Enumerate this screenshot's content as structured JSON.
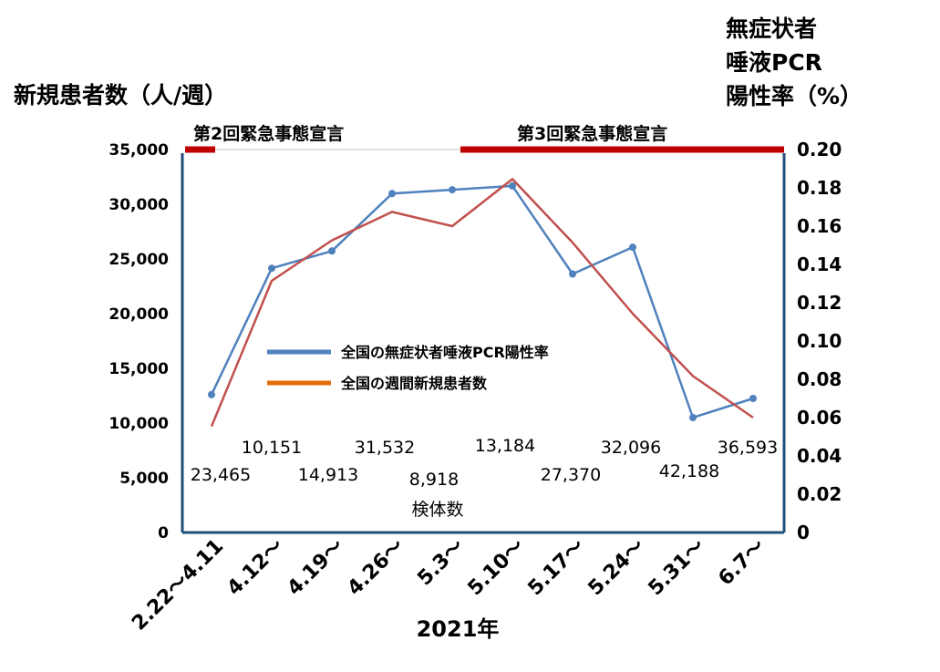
{
  "chart_data": {
    "type": "line",
    "x_axis_label": "2021年",
    "categories": [
      "2.22～4.11",
      "4.12～",
      "4.19～",
      "4.26～",
      "5.3～",
      "5.10～",
      "5.17～",
      "5.24～",
      "5.31～",
      "6.7～"
    ],
    "left_axis": {
      "label": "新規患者数（人/週）",
      "ylim": [
        0,
        35000
      ],
      "ticks": [
        "0",
        "5,000",
        "10,000",
        "15,000",
        "20,000",
        "25,000",
        "30,000",
        "35,000"
      ]
    },
    "right_axis": {
      "label_lines": [
        "無症状者",
        "唾液PCR",
        "陽性率（%）"
      ],
      "ylim": [
        0,
        0.2
      ],
      "ticks": [
        "0",
        "0.02",
        "0.04",
        "0.06",
        "0.08",
        "0.10",
        "0.12",
        "0.14",
        "0.16",
        "0.18",
        "0.20"
      ]
    },
    "series": [
      {
        "name": "全国の無症状者唾液PCR陽性率",
        "axis": "right",
        "color": "#4f81bd",
        "markers": true,
        "values": [
          0.072,
          0.138,
          0.147,
          0.177,
          0.179,
          0.181,
          0.135,
          0.149,
          0.06,
          0.07
        ]
      },
      {
        "name": "全国の週間新規患者数",
        "axis": "left",
        "color": "#c0504d",
        "legend_color": "#e36c09",
        "markers": false,
        "values": [
          9700,
          23000,
          26700,
          29300,
          28000,
          32300,
          26500,
          20000,
          14300,
          10500
        ]
      }
    ],
    "sample_counts": {
      "title": "検体数",
      "values": [
        "23,465",
        "10,151",
        "14,913",
        "31,532",
        "8,918",
        "13,184",
        "27,370",
        "32,096",
        "42,188",
        "36,593"
      ]
    },
    "emergency_periods": [
      {
        "label": "第2回緊急事態宣言",
        "color": "#c00000"
      },
      {
        "label": "第3回緊急事態宣言",
        "color": "#c00000"
      }
    ]
  }
}
